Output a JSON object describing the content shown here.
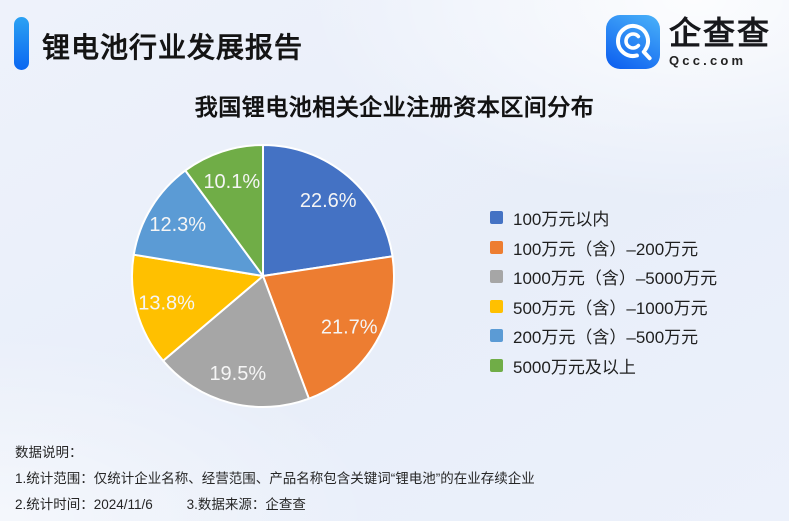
{
  "header": {
    "title": "锂电池行业发展报告"
  },
  "logo": {
    "name": "企查查",
    "domain": "Qcc.com",
    "icon": "qcc-magnifier-icon"
  },
  "chart_data": {
    "type": "pie",
    "title": "我国锂电池相关企业注册资本区间分布",
    "labels": [
      "100万元以内",
      "100万元（含）–200万元",
      "1000万元（含）–5000万元",
      "500万元（含）–1000万元",
      "200万元（含）–500万元",
      "5000万元及以上"
    ],
    "values": [
      22.6,
      21.7,
      19.5,
      13.8,
      12.3,
      10.1
    ],
    "value_labels": [
      "22.6%",
      "21.7%",
      "19.5%",
      "13.8%",
      "12.3%",
      "10.1%"
    ],
    "colors": [
      "#4472C4",
      "#ED7D31",
      "#A6A6A6",
      "#FFC000",
      "#5B9BD5",
      "#70AD47"
    ],
    "unit": "%",
    "start_angle_deg": 0,
    "direction": "clockwise",
    "legend_position": "right",
    "slice_border_color": "#ffffff"
  },
  "notes": {
    "heading": "数据说明：",
    "line1": "1.统计范围：仅统计企业名称、经营范围、产品名称包含关键词“锂电池”的在业存续企业",
    "line2_left": "2.统计时间：2024/11/6",
    "line2_right": "3.数据来源：企查查"
  },
  "accent_colors": {
    "bar_top": "#2ba2f3",
    "bar_bottom": "#0b67f1"
  }
}
